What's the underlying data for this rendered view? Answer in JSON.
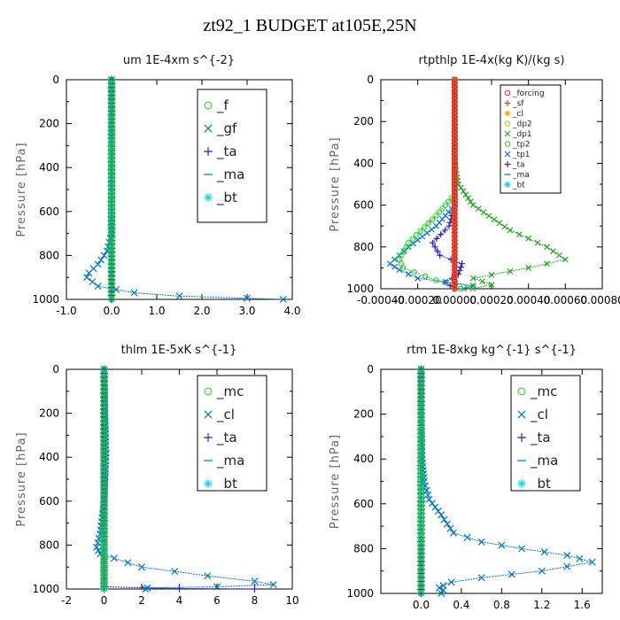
{
  "title": "zt92_1  BUDGET at105E,25N",
  "chart_data": [
    {
      "type": "line",
      "title": "um  1E-4xm s^{-2}",
      "ylabel": "Pressure [hPa]",
      "xlim": [
        -1.0,
        4.0
      ],
      "ylim": [
        1000,
        0
      ],
      "x_ticks": [
        "-1.0",
        "0.0",
        "1.0",
        "2.0",
        "3.0",
        "4.0"
      ],
      "y_ticks": [
        "0",
        "200",
        "400",
        "600",
        "800",
        "1000"
      ],
      "legend_position": "top-right",
      "series": [
        {
          "name": "_f",
          "color": "#22cc22",
          "marker": "o",
          "points": [
            [
              0,
              0
            ],
            [
              0,
              200
            ],
            [
              0,
              400
            ],
            [
              0,
              600
            ],
            [
              0,
              800
            ],
            [
              0,
              1000
            ]
          ]
        },
        {
          "name": "_gf",
          "color": "#0077cc",
          "marker": "x",
          "points": [
            [
              0,
              0
            ],
            [
              0,
              200
            ],
            [
              0,
              400
            ],
            [
              0,
              600
            ],
            [
              0,
              700
            ],
            [
              -0.1,
              780
            ],
            [
              -0.3,
              840
            ],
            [
              -0.5,
              880
            ],
            [
              -0.55,
              900
            ],
            [
              -0.3,
              940
            ],
            [
              0.5,
              970
            ],
            [
              1.5,
              985
            ],
            [
              3.0,
              995
            ],
            [
              3.8,
              1000
            ]
          ]
        },
        {
          "name": "_ta",
          "color": "#2222cc",
          "marker": "+",
          "points": [
            [
              0,
              0
            ],
            [
              0,
              500
            ],
            [
              0,
              1000
            ]
          ]
        },
        {
          "name": "_ma",
          "color": "#00aaaa",
          "marker": "-",
          "points": [
            [
              0,
              0
            ],
            [
              0,
              500
            ],
            [
              0,
              1000
            ]
          ]
        },
        {
          "name": "_bt",
          "color": "#00dddd",
          "marker": "*",
          "points": [
            [
              0,
              0
            ],
            [
              0,
              500
            ],
            [
              0,
              1000
            ]
          ]
        }
      ]
    },
    {
      "type": "line",
      "title": "rtpthlp  1E-4x(kg K)/(kg s)",
      "ylabel": "Pressure [hPa]",
      "xlim": [
        -0.0004,
        0.0008
      ],
      "ylim": [
        1000,
        0
      ],
      "x_ticks": [
        "-0.00040",
        "-0.00020",
        "0.00000",
        "0.00020",
        "0.00040",
        "0.00060",
        "0.00080"
      ],
      "y_ticks": [
        "0",
        "200",
        "400",
        "600",
        "800",
        "1000"
      ],
      "legend_position": "top-right",
      "series": [
        {
          "name": "_forcing",
          "color": "#dd2222",
          "marker": "o",
          "points": [
            [
              0,
              0
            ],
            [
              0,
              500
            ],
            [
              0,
              1000
            ]
          ]
        },
        {
          "name": "_sf",
          "color": "#ee3333",
          "marker": "+",
          "points": [
            [
              0,
              0
            ],
            [
              0,
              500
            ],
            [
              0,
              1000
            ]
          ]
        },
        {
          "name": "_cl",
          "color": "#ffaa00",
          "marker": "*",
          "points": [
            [
              0,
              0
            ],
            [
              0,
              500
            ],
            [
              0,
              1000
            ]
          ]
        },
        {
          "name": "_dp2",
          "color": "#ddaa00",
          "marker": "o",
          "points": [
            [
              0,
              0
            ],
            [
              0,
              500
            ],
            [
              0,
              1000
            ]
          ]
        },
        {
          "name": "_dp1",
          "color": "#22aa22",
          "marker": "x",
          "points": [
            [
              0,
              0
            ],
            [
              0,
              400
            ],
            [
              2e-05,
              500
            ],
            [
              0.0001,
              600
            ],
            [
              0.0003,
              720
            ],
            [
              0.0005,
              800
            ],
            [
              0.0006,
              860
            ],
            [
              0.0004,
              900
            ],
            [
              0.0001,
              950
            ],
            [
              0.0002,
              980
            ],
            [
              0.0001,
              1000
            ]
          ]
        },
        {
          "name": "_tp2",
          "color": "#22cc22",
          "marker": "o",
          "points": [
            [
              0,
              0
            ],
            [
              0,
              550
            ],
            [
              -0.0001,
              650
            ],
            [
              -0.00025,
              780
            ],
            [
              -0.0003,
              860
            ],
            [
              -0.00028,
              900
            ],
            [
              -0.0001,
              960
            ],
            [
              0.0001,
              990
            ],
            [
              3e-05,
              1000
            ]
          ]
        },
        {
          "name": "_tp1",
          "color": "#0077cc",
          "marker": "x",
          "points": [
            [
              0,
              0
            ],
            [
              0,
              600
            ],
            [
              -0.0001,
              700
            ],
            [
              -0.00025,
              800
            ],
            [
              -0.00035,
              880
            ],
            [
              -0.0003,
              910
            ],
            [
              -0.0002,
              950
            ],
            [
              0.0001,
              985
            ],
            [
              5e-05,
              1000
            ]
          ]
        },
        {
          "name": "_ta",
          "color": "#2222cc",
          "marker": "+",
          "points": [
            [
              0,
              0
            ],
            [
              0,
              600
            ],
            [
              -3e-05,
              700
            ],
            [
              -0.00012,
              780
            ],
            [
              -8e-05,
              840
            ],
            [
              4e-05,
              880
            ],
            [
              2e-05,
              930
            ],
            [
              -5e-05,
              970
            ],
            [
              0,
              1000
            ]
          ]
        },
        {
          "name": "_ma",
          "color": "#00aaaa",
          "marker": "-",
          "points": [
            [
              0,
              0
            ],
            [
              0,
              1000
            ]
          ]
        },
        {
          "name": "_bt",
          "color": "#00dddd",
          "marker": "*",
          "points": [
            [
              0,
              0
            ],
            [
              0,
              1000
            ]
          ]
        }
      ]
    },
    {
      "type": "line",
      "title": "thlm  1E-5xK s^{-1}",
      "ylabel": "Pressure [hPa]",
      "xlim": [
        -2,
        10
      ],
      "ylim": [
        1000,
        0
      ],
      "x_ticks": [
        "-2",
        "0",
        "2",
        "4",
        "6",
        "8",
        "10"
      ],
      "y_ticks": [
        "0",
        "200",
        "400",
        "600",
        "800",
        "1000"
      ],
      "legend_position": "top-right",
      "series": [
        {
          "name": "_mc",
          "color": "#22cc22",
          "marker": "o",
          "points": [
            [
              0,
              0
            ],
            [
              0,
              200
            ],
            [
              0,
              400
            ],
            [
              0,
              600
            ],
            [
              0,
              800
            ],
            [
              0,
              1000
            ]
          ]
        },
        {
          "name": "_cl",
          "color": "#0077cc",
          "marker": "x",
          "points": [
            [
              0,
              0
            ],
            [
              0.05,
              200
            ],
            [
              0.1,
              400
            ],
            [
              0,
              600
            ],
            [
              -0.2,
              750
            ],
            [
              -0.4,
              810
            ],
            [
              -0.2,
              840
            ],
            [
              2.0,
              900
            ],
            [
              5.5,
              940
            ],
            [
              8.0,
              965
            ],
            [
              9.0,
              980
            ],
            [
              6.0,
              990
            ],
            [
              2.3,
              995
            ],
            [
              2.2,
              1000
            ]
          ]
        },
        {
          "name": "_ta",
          "color": "#2222cc",
          "marker": "+",
          "points": [
            [
              0,
              0
            ],
            [
              0,
              600
            ],
            [
              0,
              990
            ],
            [
              4,
              998
            ],
            [
              8,
              1000
            ]
          ]
        },
        {
          "name": "_ma",
          "color": "#00aaaa",
          "marker": "-",
          "points": [
            [
              0,
              0
            ],
            [
              0,
              1000
            ]
          ]
        },
        {
          "name": "_bt",
          "color": "#00dddd",
          "marker": "*",
          "points": [
            [
              0,
              0
            ],
            [
              0,
              1000
            ]
          ]
        }
      ]
    },
    {
      "type": "line",
      "title": "rtm  1E-8xkg kg^{-1} s^{-1}",
      "ylabel": "Pressure [hPa]",
      "xlim": [
        -0.4,
        1.8
      ],
      "ylim": [
        1000,
        0
      ],
      "x_ticks": [
        "0.0",
        "0.4",
        "0.8",
        "1.2",
        "1.6"
      ],
      "x_tick_values": [
        0.0,
        0.4,
        0.8,
        1.2,
        1.6
      ],
      "y_ticks": [
        "0",
        "200",
        "400",
        "600",
        "800",
        "1000"
      ],
      "legend_position": "top-right",
      "series": [
        {
          "name": "_mc",
          "color": "#22cc22",
          "marker": "o",
          "points": [
            [
              0,
              0
            ],
            [
              0,
              200
            ],
            [
              0,
              400
            ],
            [
              0,
              600
            ],
            [
              0,
              800
            ],
            [
              0,
              1000
            ]
          ]
        },
        {
          "name": "_cl",
          "color": "#0077cc",
          "marker": "x",
          "points": [
            [
              0,
              0
            ],
            [
              0,
              200
            ],
            [
              0.01,
              400
            ],
            [
              0.03,
              500
            ],
            [
              0.08,
              580
            ],
            [
              0.2,
              650
            ],
            [
              0.32,
              730
            ],
            [
              0.6,
              770
            ],
            [
              1.0,
              800
            ],
            [
              1.45,
              830
            ],
            [
              1.7,
              860
            ],
            [
              1.2,
              900
            ],
            [
              0.6,
              930
            ],
            [
              0.3,
              950
            ],
            [
              0.22,
              965
            ],
            [
              0.18,
              975
            ],
            [
              0.22,
              985
            ],
            [
              0.2,
              1000
            ]
          ]
        },
        {
          "name": "_ta",
          "color": "#2222cc",
          "marker": "+",
          "points": [
            [
              0,
              0
            ],
            [
              0,
              500
            ],
            [
              0,
              1000
            ]
          ]
        },
        {
          "name": "_ma",
          "color": "#00aaaa",
          "marker": "-",
          "points": [
            [
              0,
              0
            ],
            [
              0,
              1000
            ]
          ]
        },
        {
          "name": "_bt",
          "color": "#00dddd",
          "marker": "*",
          "points": [
            [
              0,
              0
            ],
            [
              0,
              1000
            ]
          ]
        }
      ]
    }
  ]
}
